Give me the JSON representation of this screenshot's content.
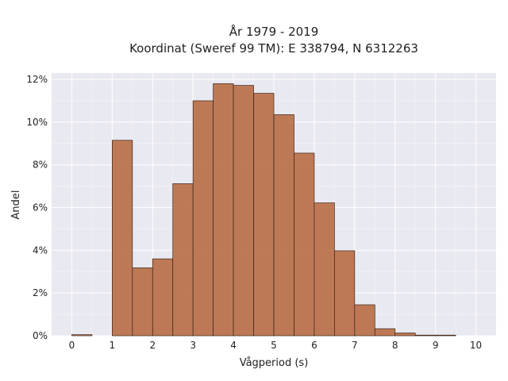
{
  "chart_data": {
    "type": "bar",
    "title": "År 1979 - 2019",
    "subtitle": "Koordinat (Sweref 99 TM): E 338794, N 6312263",
    "xlabel": "Vågperiod (s)",
    "ylabel": "Andel",
    "xlim": [
      -0.5,
      10.5
    ],
    "ylim": [
      0,
      12.3
    ],
    "x_ticks": [
      "0",
      "1",
      "2",
      "3",
      "4",
      "5",
      "6",
      "7",
      "8",
      "9",
      "10"
    ],
    "y_ticks": [
      "0%",
      "2%",
      "4%",
      "6%",
      "8%",
      "10%",
      "12%"
    ],
    "bin_width": 0.5,
    "bins": [
      {
        "x0": 0.0,
        "value": 0.05
      },
      {
        "x0": 1.0,
        "value": 9.15
      },
      {
        "x0": 1.5,
        "value": 3.18
      },
      {
        "x0": 2.0,
        "value": 3.6
      },
      {
        "x0": 2.5,
        "value": 7.12
      },
      {
        "x0": 3.0,
        "value": 11.0
      },
      {
        "x0": 3.5,
        "value": 11.8
      },
      {
        "x0": 4.0,
        "value": 11.72
      },
      {
        "x0": 4.5,
        "value": 11.35
      },
      {
        "x0": 5.0,
        "value": 10.35
      },
      {
        "x0": 5.5,
        "value": 8.55
      },
      {
        "x0": 6.0,
        "value": 6.22
      },
      {
        "x0": 6.5,
        "value": 3.98
      },
      {
        "x0": 7.0,
        "value": 1.45
      },
      {
        "x0": 7.5,
        "value": 0.33
      },
      {
        "x0": 8.0,
        "value": 0.13
      },
      {
        "x0": 8.5,
        "value": 0.03
      },
      {
        "x0": 9.0,
        "value": 0.03
      }
    ],
    "grid": true,
    "legend": "none",
    "colors": {
      "bar": "#b5653b",
      "bar_edge": "#3a2418",
      "plot_bg": "#e9e9f1"
    }
  }
}
